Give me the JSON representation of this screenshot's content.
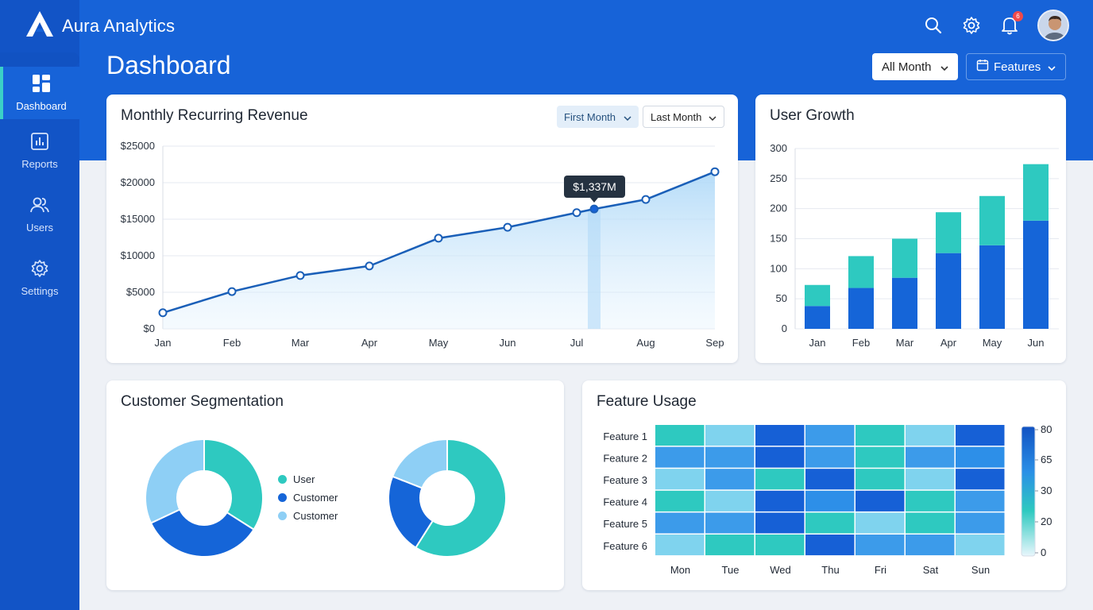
{
  "app": {
    "name": "Aura Analytics"
  },
  "header": {
    "notification_count": "6"
  },
  "sidebar": {
    "items": [
      {
        "label": "Dashboard",
        "icon": "dashboard-icon",
        "active": true
      },
      {
        "label": "Reports",
        "icon": "reports-icon"
      },
      {
        "label": "Users",
        "icon": "users-icon"
      },
      {
        "label": "Settings",
        "icon": "gear-icon"
      }
    ]
  },
  "page": {
    "title": "Dashboard",
    "filter_period": "All Month",
    "filter_features": "Features"
  },
  "mrr": {
    "title": "Monthly Recurring Revenue",
    "first_month": "First Month",
    "last_month": "Last Month",
    "tooltip": "$1,337M"
  },
  "growth": {
    "title": "User Growth"
  },
  "segmentation": {
    "title": "Customer Segmentation"
  },
  "feature_usage": {
    "title": "Feature Usage"
  },
  "colors": {
    "primary": "#1763d8",
    "teal": "#2ec9c0",
    "light_blue": "#8ecff5",
    "dark_blue": "#1152c2"
  },
  "chart_data": [
    {
      "type": "line",
      "title": "Monthly Recurring Revenue",
      "x": [
        "Jan",
        "Feb",
        "Mar",
        "Apr",
        "May",
        "Jun",
        "Jul",
        "Jul",
        "Aug",
        "Sep"
      ],
      "x_ticks": [
        "Jan",
        "Feb",
        "Mar",
        "Apr",
        "May",
        "Jun",
        "Jul",
        "Aug",
        "Sep"
      ],
      "values": [
        2200,
        5100,
        7300,
        8600,
        12400,
        13900,
        15900,
        16400,
        17700,
        21500
      ],
      "ylim": [
        0,
        25000
      ],
      "y_ticks": [
        "$0",
        "$5000",
        "$10000",
        "$15000",
        "$20000",
        "$25000"
      ],
      "highlight_index": 7,
      "grid": true
    },
    {
      "type": "bar",
      "title": "User Growth",
      "stacked": true,
      "categories": [
        "Jan",
        "Feb",
        "Mar",
        "Apr",
        "May",
        "Jun"
      ],
      "series": [
        {
          "values": [
            38,
            68,
            85,
            126,
            139,
            180
          ],
          "color": "#1565d8"
        },
        {
          "values": [
            35,
            53,
            65,
            68,
            82,
            94
          ],
          "color": "#2ec9c0"
        }
      ],
      "ylim": [
        0,
        300
      ],
      "y_ticks": [
        "0",
        "50",
        "100",
        "150",
        "200",
        "250",
        "300"
      ],
      "grid": true
    },
    {
      "type": "pie",
      "donut": true,
      "legend": [
        "User",
        "Customer",
        "Customer"
      ],
      "legend_colors": [
        "#2ec9c0",
        "#1565d8",
        "#8ecff5"
      ],
      "charts": [
        {
          "values": [
            34,
            34,
            32
          ],
          "colors": [
            "#2ec9c0",
            "#1565d8",
            "#8ecff5"
          ]
        },
        {
          "values": [
            59,
            22,
            19
          ],
          "colors": [
            "#2ec9c0",
            "#1565d8",
            "#8ecff5"
          ]
        }
      ]
    },
    {
      "type": "heatmap",
      "title": "Feature Usage",
      "rows": [
        "Feature 1",
        "Feature 2",
        "Feature 3",
        "Feature 4",
        "Feature 5",
        "Feature 6"
      ],
      "columns": [
        "Mon",
        "Tue",
        "Wed",
        "Thu",
        "Fri",
        "Sat",
        "Sun"
      ],
      "values": [
        [
          35,
          25,
          80,
          50,
          35,
          25,
          80
        ],
        [
          50,
          50,
          80,
          50,
          35,
          50,
          65
        ],
        [
          25,
          50,
          35,
          80,
          35,
          25,
          80
        ],
        [
          35,
          25,
          80,
          65,
          80,
          35,
          50
        ],
        [
          50,
          50,
          80,
          35,
          25,
          35,
          50
        ],
        [
          25,
          35,
          35,
          80,
          50,
          50,
          25
        ]
      ],
      "scale_ticks": [
        "80",
        "65",
        "30",
        "20",
        "0"
      ]
    }
  ]
}
